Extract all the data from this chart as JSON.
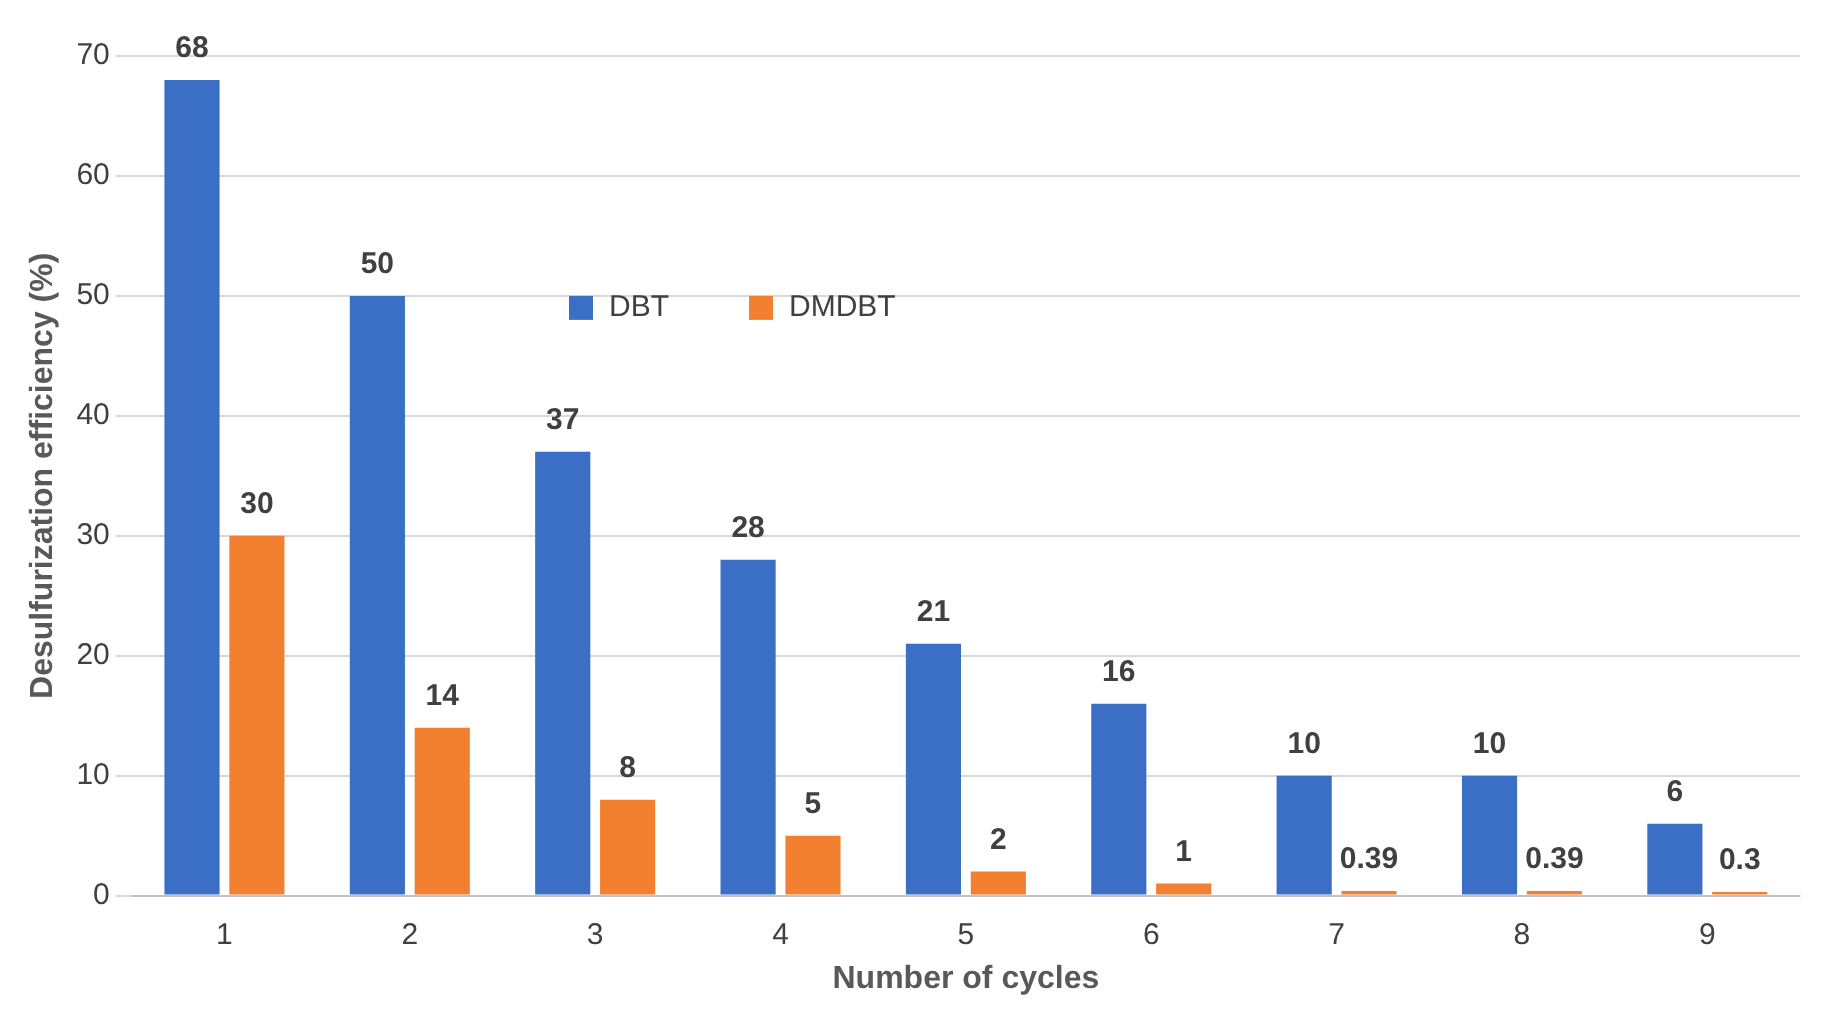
{
  "chart_data": {
    "type": "bar",
    "xlabel": "Number of cycles",
    "ylabel": "Desulfurization efficiency (%)",
    "categories": [
      "1",
      "2",
      "3",
      "4",
      "5",
      "6",
      "7",
      "8",
      "9"
    ],
    "series": [
      {
        "name": "DBT",
        "color": "#3b6fc6",
        "values": [
          68,
          50,
          37,
          28,
          21,
          16,
          10,
          10,
          6
        ]
      },
      {
        "name": "DMDBT",
        "color": "#f28030",
        "values": [
          30,
          14,
          8,
          5,
          2,
          1,
          0.39,
          0.39,
          0.3
        ]
      }
    ],
    "ylim": [
      0,
      70
    ],
    "yticks": [
      0,
      10,
      20,
      30,
      40,
      50,
      60,
      70
    ],
    "grid": "y",
    "legend": "top",
    "data_labels": true
  }
}
